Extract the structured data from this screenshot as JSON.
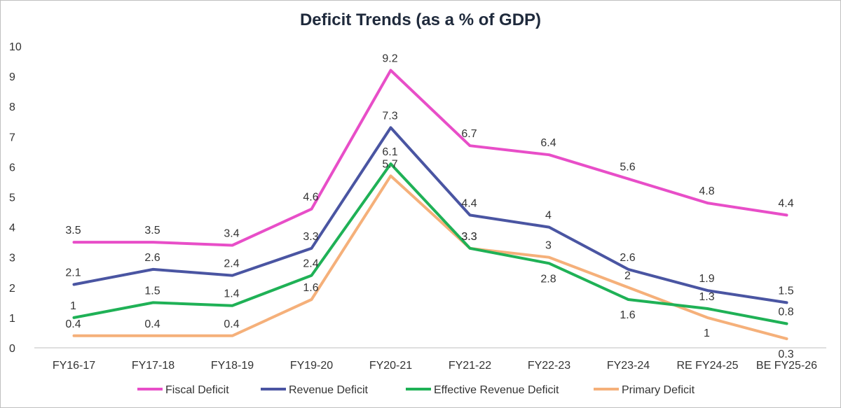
{
  "chart_data": {
    "type": "line",
    "title": "Deficit Trends (as a % of GDP)",
    "xlabel": "",
    "ylabel": "",
    "ylim": [
      0,
      10
    ],
    "yticks": [
      "0",
      "1",
      "2",
      "3",
      "4",
      "5",
      "6",
      "7",
      "8",
      "9",
      "10"
    ],
    "grid": false,
    "legend_position": "bottom",
    "categories": [
      "FY16-17",
      "FY17-18",
      "FY18-19",
      "FY19-20",
      "FY20-21",
      "FY21-22",
      "FY22-23",
      "FY23-24",
      "RE FY24-25",
      "BE FY25-26"
    ],
    "series": [
      {
        "name": "Fiscal Deficit",
        "color": "#e84ec8",
        "values": [
          3.5,
          3.5,
          3.4,
          4.6,
          9.2,
          6.7,
          6.4,
          5.6,
          4.8,
          4.4
        ]
      },
      {
        "name": "Revenue Deficit",
        "color": "#4a55a2",
        "values": [
          2.1,
          2.6,
          2.4,
          3.3,
          7.3,
          4.4,
          4,
          2.6,
          1.9,
          1.5
        ]
      },
      {
        "name": "Effective Revenue Deficit",
        "color": "#1fb156",
        "values": [
          1,
          1.5,
          1.4,
          2.4,
          6.1,
          3.3,
          2.8,
          1.6,
          1.3,
          0.8
        ]
      },
      {
        "name": "Primary Deficit",
        "color": "#f5b07a",
        "values": [
          0.4,
          0.4,
          0.4,
          1.6,
          5.7,
          3.3,
          3,
          2,
          1,
          0.3
        ]
      }
    ]
  }
}
